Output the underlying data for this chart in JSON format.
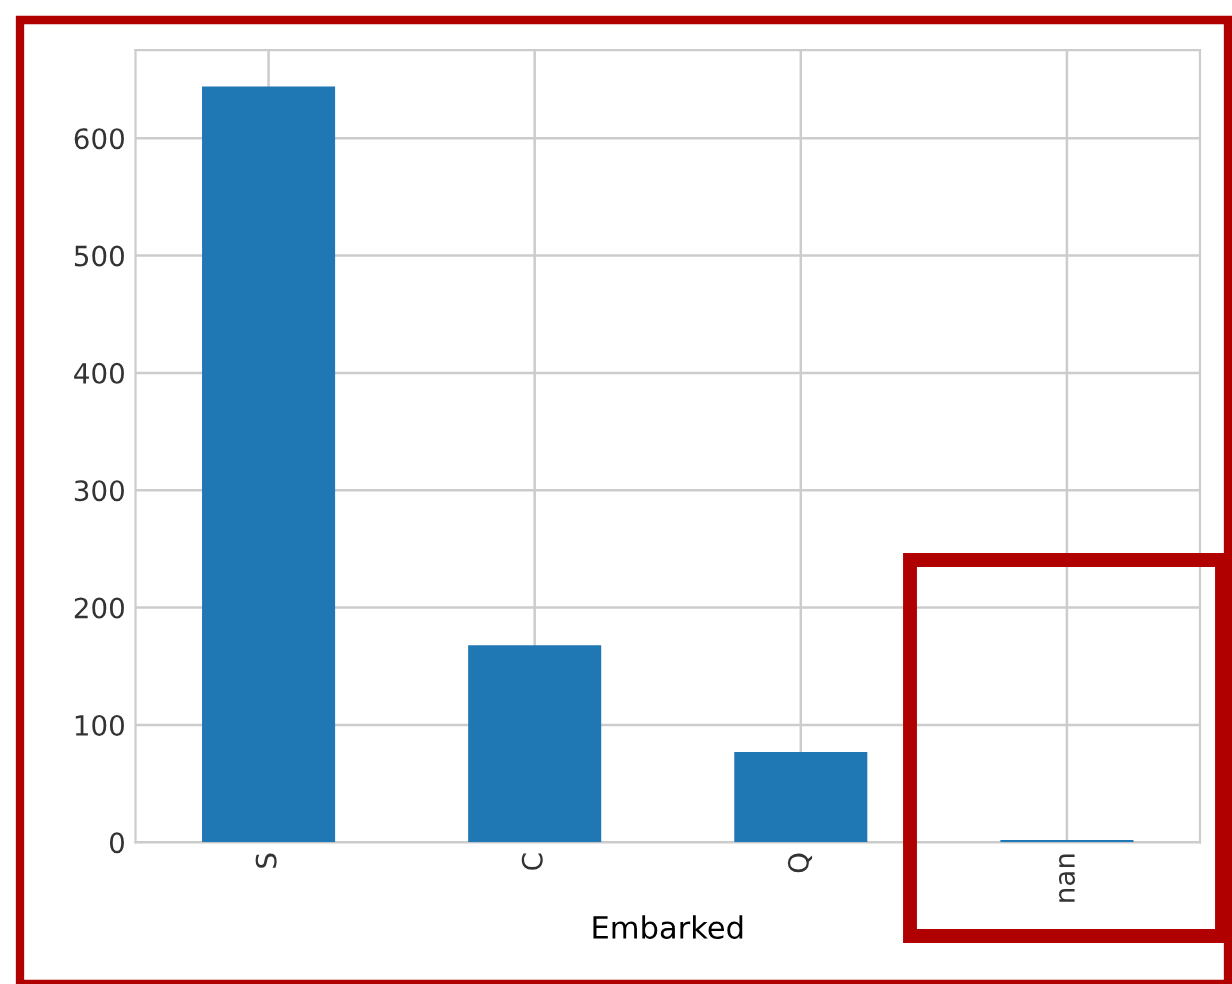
{
  "chart_data": {
    "type": "bar",
    "xlabel": "Embarked",
    "categories": [
      "S",
      "C",
      "Q",
      "nan"
    ],
    "values": [
      644,
      168,
      77,
      2
    ],
    "color": "#1f77b4",
    "ylim": [
      0,
      675
    ],
    "yticks": [
      0,
      100,
      200,
      300,
      400,
      500,
      600
    ],
    "grid": true
  }
}
